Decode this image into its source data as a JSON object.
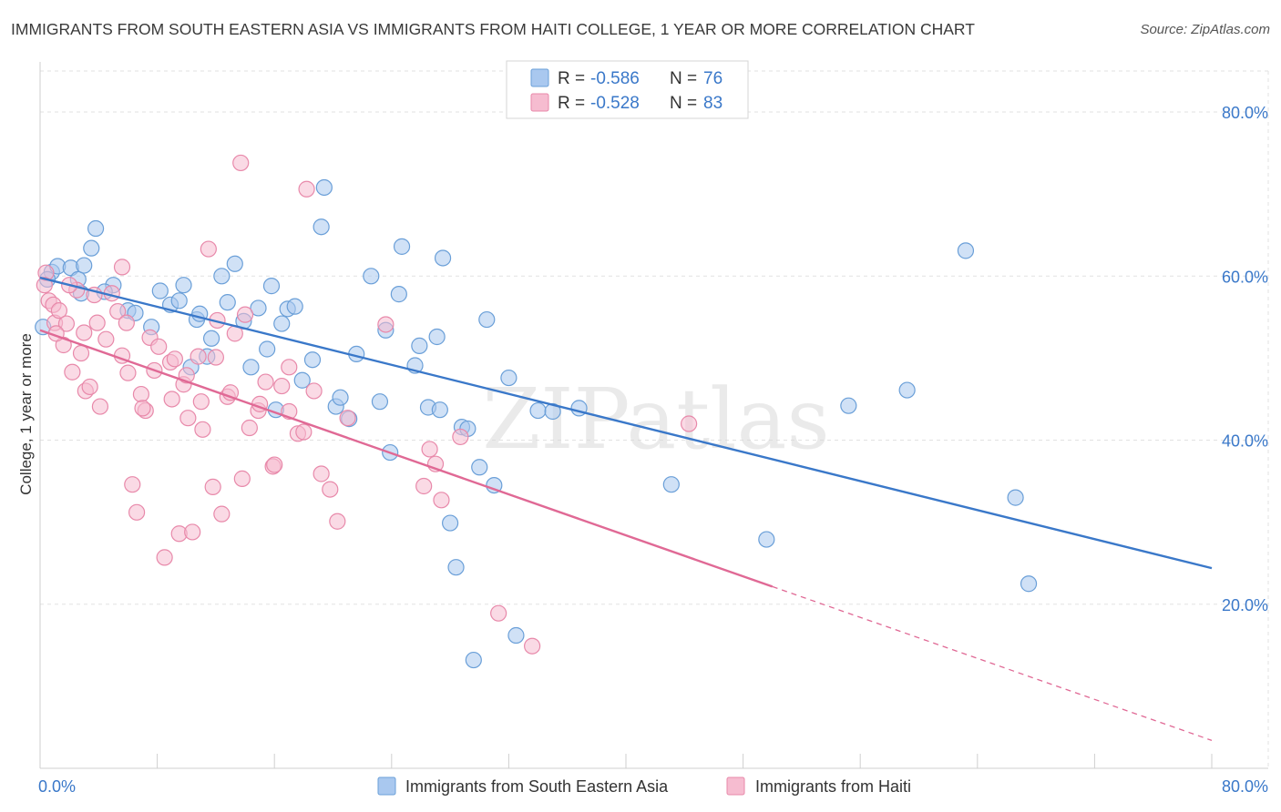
{
  "title": "IMMIGRANTS FROM SOUTH EASTERN ASIA VS IMMIGRANTS FROM HAITI COLLEGE, 1 YEAR OR MORE CORRELATION CHART",
  "source": "Source: ZipAtlas.com",
  "watermark": "ZIPatlas",
  "colors": {
    "blue_fill": "#a9c8ef",
    "blue_stroke": "#6a9fd8",
    "blue_line": "#3a78c9",
    "pink_fill": "#f6bcd0",
    "pink_stroke": "#e889aa",
    "pink_line": "#e06995",
    "axis_label": "#3a78c9",
    "grid": "#e2e2e2"
  },
  "legend": {
    "row1": {
      "r_label": "R =",
      "r_value": "-0.586",
      "n_label": "N =",
      "n_value": "76"
    },
    "row2": {
      "r_label": "R =",
      "r_value": "-0.528",
      "n_label": "N =",
      "n_value": "83"
    }
  },
  "chart_data": {
    "type": "scatter",
    "xlabel": "",
    "ylabel": "College, 1 year or more",
    "xlim": [
      0,
      80
    ],
    "ylim": [
      0,
      85
    ],
    "x_tick_labels": [
      "0.0%",
      "80.0%"
    ],
    "y_ticks": [
      20,
      40,
      60,
      80
    ],
    "y_tick_labels": [
      "20.0%",
      "40.0%",
      "60.0%",
      "80.0%"
    ],
    "grid": true,
    "legend_position": "top-center",
    "series": [
      {
        "name": "Immigrants from South Eastern Asia",
        "color": "blue",
        "trend": {
          "x": [
            0,
            80
          ],
          "y": [
            59.8,
            24.4
          ],
          "dashed_from": null
        },
        "points": [
          [
            0.8,
            60.5
          ],
          [
            1.2,
            61.2
          ],
          [
            2.1,
            61.0
          ],
          [
            2.6,
            59.6
          ],
          [
            2.8,
            57.9
          ],
          [
            3.0,
            61.3
          ],
          [
            3.5,
            63.4
          ],
          [
            3.8,
            65.8
          ],
          [
            5.0,
            58.9
          ],
          [
            6.0,
            55.8
          ],
          [
            6.5,
            55.5
          ],
          [
            7.6,
            53.8
          ],
          [
            8.2,
            58.2
          ],
          [
            8.9,
            56.5
          ],
          [
            9.5,
            57.0
          ],
          [
            9.8,
            58.9
          ],
          [
            10.3,
            48.9
          ],
          [
            10.7,
            54.7
          ],
          [
            11.4,
            50.2
          ],
          [
            11.7,
            52.4
          ],
          [
            12.4,
            60.0
          ],
          [
            12.8,
            56.8
          ],
          [
            13.3,
            61.5
          ],
          [
            13.9,
            54.5
          ],
          [
            14.4,
            48.9
          ],
          [
            14.9,
            56.1
          ],
          [
            15.5,
            51.1
          ],
          [
            16.1,
            43.7
          ],
          [
            16.5,
            54.2
          ],
          [
            16.9,
            56.0
          ],
          [
            17.4,
            56.3
          ],
          [
            17.9,
            47.3
          ],
          [
            18.6,
            49.8
          ],
          [
            19.2,
            66.0
          ],
          [
            19.4,
            70.8
          ],
          [
            20.2,
            44.1
          ],
          [
            20.5,
            45.2
          ],
          [
            21.1,
            42.6
          ],
          [
            21.6,
            50.5
          ],
          [
            22.6,
            60.0
          ],
          [
            23.2,
            44.7
          ],
          [
            23.6,
            53.4
          ],
          [
            23.9,
            38.5
          ],
          [
            24.5,
            57.8
          ],
          [
            24.7,
            63.6
          ],
          [
            25.6,
            49.1
          ],
          [
            25.9,
            51.5
          ],
          [
            26.5,
            44.0
          ],
          [
            27.1,
            52.6
          ],
          [
            27.3,
            43.7
          ],
          [
            27.5,
            62.2
          ],
          [
            28.0,
            29.9
          ],
          [
            28.4,
            24.5
          ],
          [
            28.8,
            41.6
          ],
          [
            29.2,
            41.4
          ],
          [
            29.6,
            13.2
          ],
          [
            30.0,
            36.7
          ],
          [
            30.5,
            54.7
          ],
          [
            31.0,
            34.5
          ],
          [
            32.0,
            47.6
          ],
          [
            32.5,
            16.2
          ],
          [
            34.0,
            43.6
          ],
          [
            35.0,
            43.5
          ],
          [
            36.8,
            43.9
          ],
          [
            43.1,
            34.6
          ],
          [
            49.6,
            27.9
          ],
          [
            55.2,
            44.2
          ],
          [
            59.2,
            46.1
          ],
          [
            63.2,
            63.1
          ],
          [
            66.6,
            33.0
          ],
          [
            67.5,
            22.5
          ],
          [
            0.2,
            53.8
          ],
          [
            0.5,
            59.6
          ],
          [
            4.4,
            58.1
          ],
          [
            10.9,
            55.4
          ],
          [
            15.8,
            58.8
          ]
        ]
      },
      {
        "name": "Immigrants from Haiti",
        "color": "pink",
        "trend": {
          "x": [
            0,
            80
          ],
          "y": [
            53.4,
            3.4
          ],
          "dashed_from": 50.0
        },
        "points": [
          [
            0.4,
            60.4
          ],
          [
            0.6,
            57.0
          ],
          [
            0.9,
            56.5
          ],
          [
            1.0,
            54.3
          ],
          [
            1.3,
            55.8
          ],
          [
            1.6,
            51.6
          ],
          [
            1.8,
            54.2
          ],
          [
            2.2,
            48.3
          ],
          [
            2.5,
            58.3
          ],
          [
            2.8,
            50.6
          ],
          [
            3.1,
            46.0
          ],
          [
            3.4,
            46.5
          ],
          [
            3.7,
            57.7
          ],
          [
            3.9,
            54.3
          ],
          [
            4.1,
            44.1
          ],
          [
            4.5,
            52.3
          ],
          [
            4.9,
            57.9
          ],
          [
            5.3,
            55.7
          ],
          [
            5.6,
            50.3
          ],
          [
            5.9,
            54.3
          ],
          [
            6.3,
            34.6
          ],
          [
            6.6,
            31.2
          ],
          [
            6.9,
            45.6
          ],
          [
            7.2,
            43.6
          ],
          [
            7.5,
            52.5
          ],
          [
            7.8,
            48.5
          ],
          [
            8.1,
            51.4
          ],
          [
            8.5,
            25.7
          ],
          [
            8.9,
            49.5
          ],
          [
            9.2,
            49.9
          ],
          [
            9.5,
            28.6
          ],
          [
            9.8,
            46.8
          ],
          [
            10.1,
            42.7
          ],
          [
            10.4,
            28.8
          ],
          [
            10.8,
            50.2
          ],
          [
            11.1,
            41.3
          ],
          [
            11.5,
            63.3
          ],
          [
            11.8,
            34.3
          ],
          [
            12.1,
            54.6
          ],
          [
            12.4,
            31.0
          ],
          [
            12.8,
            45.3
          ],
          [
            13.3,
            53.0
          ],
          [
            13.8,
            35.3
          ],
          [
            14.3,
            41.5
          ],
          [
            14.9,
            43.6
          ],
          [
            15.4,
            47.1
          ],
          [
            15.9,
            36.8
          ],
          [
            16.5,
            46.6
          ],
          [
            17.0,
            48.9
          ],
          [
            17.6,
            40.8
          ],
          [
            18.2,
            70.6
          ],
          [
            18.7,
            46.0
          ],
          [
            19.2,
            35.9
          ],
          [
            19.8,
            34.0
          ],
          [
            20.3,
            30.1
          ],
          [
            21.0,
            42.7
          ],
          [
            23.6,
            54.1
          ],
          [
            26.2,
            34.4
          ],
          [
            26.6,
            38.9
          ],
          [
            27.0,
            37.1
          ],
          [
            27.4,
            32.7
          ],
          [
            28.7,
            40.4
          ],
          [
            31.3,
            18.9
          ],
          [
            33.6,
            14.9
          ],
          [
            44.3,
            42.0
          ],
          [
            13.7,
            73.8
          ],
          [
            5.6,
            61.1
          ],
          [
            2.0,
            58.9
          ],
          [
            3.0,
            53.1
          ],
          [
            6.0,
            48.2
          ],
          [
            7.0,
            43.9
          ],
          [
            9.0,
            45.0
          ],
          [
            10.0,
            47.9
          ],
          [
            11.0,
            44.7
          ],
          [
            12.0,
            50.1
          ],
          [
            13.0,
            45.8
          ],
          [
            14.0,
            55.3
          ],
          [
            15.0,
            44.4
          ],
          [
            16.0,
            37.0
          ],
          [
            17.0,
            43.5
          ],
          [
            18.0,
            41.0
          ],
          [
            0.3,
            58.9
          ],
          [
            1.1,
            53.0
          ]
        ]
      }
    ]
  },
  "bottom_legend": {
    "item1": "Immigrants from South Eastern Asia",
    "item2": "Immigrants from Haiti"
  }
}
